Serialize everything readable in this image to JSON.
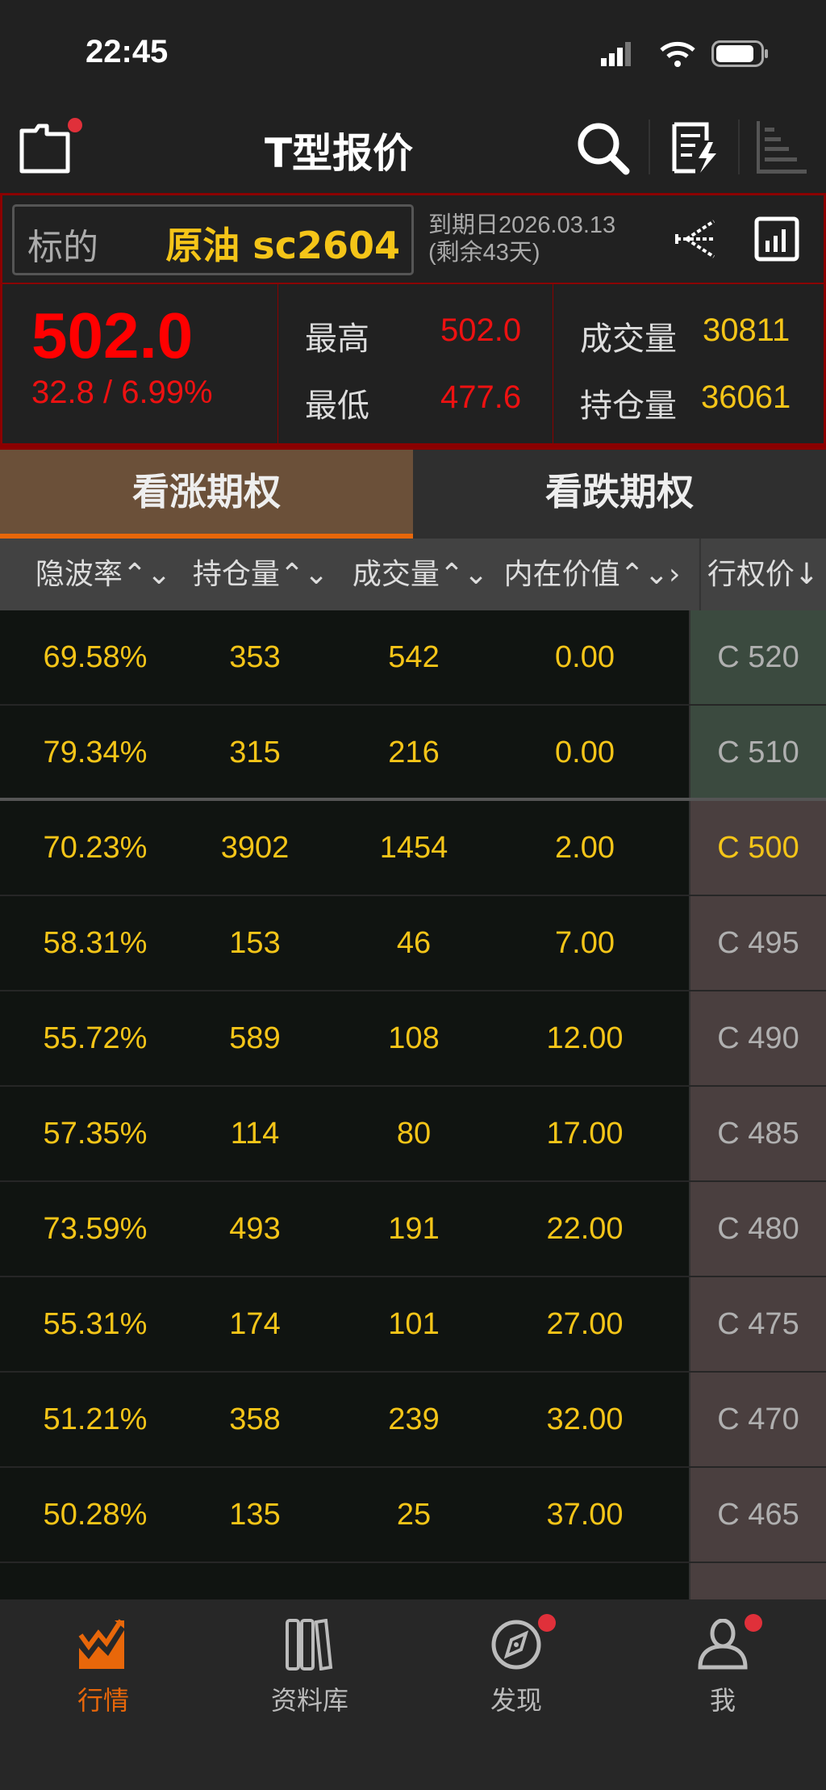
{
  "status_bar": {
    "time": "22:45"
  },
  "nav": {
    "title": "T型报价",
    "icons": [
      "folder-icon",
      "search-icon",
      "note-edit-icon",
      "list-bars-icon"
    ]
  },
  "underlying": {
    "label": "标的",
    "value": "原油 sc2604",
    "expiry": "到期日2026.03.13",
    "remaining": "(剩余43天)"
  },
  "quote": {
    "price": "502.0",
    "change": "32.8 / 6.99%",
    "high_label": "最高",
    "high": "502.0",
    "low_label": "最低",
    "low": "477.6",
    "volume_label": "成交量",
    "volume": "30811",
    "oi_label": "持仓量",
    "oi": "36061"
  },
  "tabs": [
    {
      "label": "看涨期权",
      "active": true
    },
    {
      "label": "看跌期权",
      "active": false
    }
  ],
  "columns": [
    "隐波率",
    "持仓量",
    "成交量",
    "内在价值",
    "行权价↓"
  ],
  "rows": [
    {
      "iv": "69.58%",
      "oi": "353",
      "vol": "542",
      "intrinsic": "0.00",
      "strike": "C 520"
    },
    {
      "iv": "79.34%",
      "oi": "315",
      "vol": "216",
      "intrinsic": "0.00",
      "strike": "C 510"
    },
    {
      "iv": "70.23%",
      "oi": "3902",
      "vol": "1454",
      "intrinsic": "2.00",
      "strike": "C 500"
    },
    {
      "iv": "58.31%",
      "oi": "153",
      "vol": "46",
      "intrinsic": "7.00",
      "strike": "C 495"
    },
    {
      "iv": "55.72%",
      "oi": "589",
      "vol": "108",
      "intrinsic": "12.00",
      "strike": "C 490"
    },
    {
      "iv": "57.35%",
      "oi": "114",
      "vol": "80",
      "intrinsic": "17.00",
      "strike": "C 485"
    },
    {
      "iv": "73.59%",
      "oi": "493",
      "vol": "191",
      "intrinsic": "22.00",
      "strike": "C 480"
    },
    {
      "iv": "55.31%",
      "oi": "174",
      "vol": "101",
      "intrinsic": "27.00",
      "strike": "C 475"
    },
    {
      "iv": "51.21%",
      "oi": "358",
      "vol": "239",
      "intrinsic": "32.00",
      "strike": "C 470"
    },
    {
      "iv": "50.28%",
      "oi": "135",
      "vol": "25",
      "intrinsic": "37.00",
      "strike": "C 465"
    }
  ],
  "tabbar": [
    {
      "label": "行情",
      "active": true
    },
    {
      "label": "资料库"
    },
    {
      "label": "发现",
      "badge": true
    },
    {
      "label": "我",
      "badge": true
    }
  ],
  "colors": {
    "up": "#ff0000",
    "accent": "#e8670a",
    "value": "#f5c518",
    "otm_strike_bg": "#3b4a3f",
    "itm_strike_bg": "#4a3f3f"
  }
}
